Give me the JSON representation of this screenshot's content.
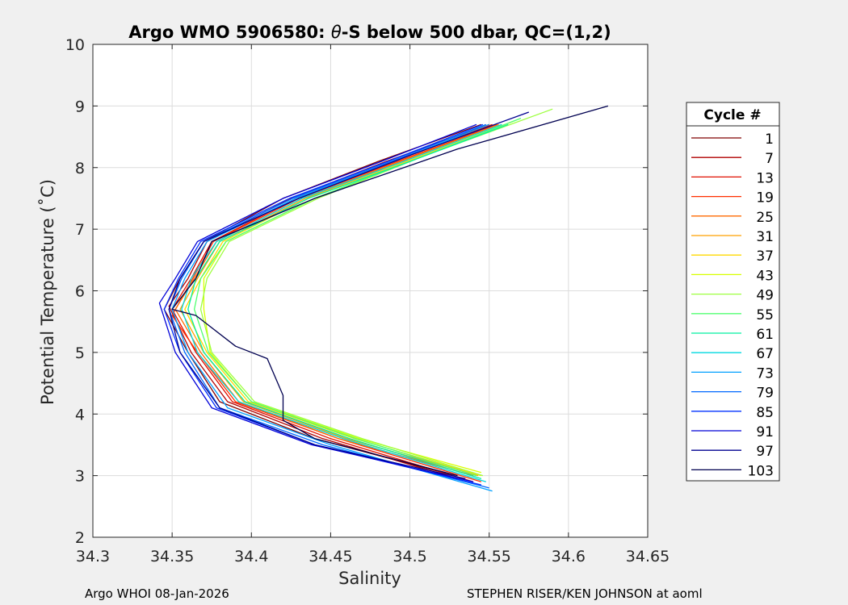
{
  "figure": {
    "footer_left": "Argo WHOI 08-Jan-2026",
    "footer_right": "STEPHEN RISER/KEN JOHNSON at aoml",
    "background": "#f0f0f0"
  },
  "chart_data": {
    "type": "line",
    "title_prefix": "Argo WMO 5906580: ",
    "title_theta": "θ",
    "title_suffix": "-S below 500 dbar,  QC=(1,2)",
    "xlabel": "Salinity",
    "ylabel": "Potential Temperature (˚C)",
    "xlim": [
      34.3,
      34.65
    ],
    "ylim": [
      2,
      10
    ],
    "xticks": [
      "34.3",
      "34.35",
      "34.4",
      "34.45",
      "34.5",
      "34.55",
      "34.6",
      "34.65"
    ],
    "yticks": [
      "2",
      "3",
      "4",
      "5",
      "6",
      "7",
      "8",
      "9",
      "10"
    ],
    "grid": true,
    "legend_title": "Cycle #",
    "legend_position": "outside-right",
    "legend_entries": [
      "1",
      "7",
      "13",
      "19",
      "25",
      "31",
      "37",
      "43",
      "49",
      "55",
      "61",
      "67",
      "73",
      "79",
      "85",
      "91",
      "97",
      "103"
    ],
    "legend_colors": [
      "#800000",
      "#b00000",
      "#e01000",
      "#ff3000",
      "#ff6a00",
      "#ffa000",
      "#ffd800",
      "#d8ff00",
      "#9eff40",
      "#50ff70",
      "#00f0a0",
      "#00d8e0",
      "#00a0ff",
      "#0068ff",
      "#0030ff",
      "#0000d8",
      "#000090",
      "#000050"
    ],
    "series": [
      {
        "name": "1",
        "color": "#800000",
        "salinity": [
          34.528,
          34.44,
          34.38,
          34.36,
          34.345,
          34.355,
          34.37,
          34.42,
          34.48,
          34.545
        ],
        "theta": [
          3.0,
          3.6,
          4.2,
          5.0,
          5.7,
          6.2,
          6.8,
          7.5,
          8.1,
          8.7
        ]
      },
      {
        "name": "7",
        "color": "#b00000",
        "salinity": [
          34.53,
          34.445,
          34.385,
          34.362,
          34.348,
          34.36,
          34.372,
          34.425,
          34.485,
          34.55
        ],
        "theta": [
          2.95,
          3.6,
          4.2,
          5.0,
          5.75,
          6.2,
          6.8,
          7.5,
          8.1,
          8.7
        ]
      },
      {
        "name": "13",
        "color": "#e01000",
        "salinity": [
          34.54,
          34.45,
          34.388,
          34.365,
          34.35,
          34.362,
          34.375,
          34.428,
          34.49,
          34.552
        ],
        "theta": [
          2.9,
          3.6,
          4.2,
          5.0,
          5.7,
          6.2,
          6.8,
          7.5,
          8.1,
          8.7
        ]
      },
      {
        "name": "19",
        "color": "#ff3000",
        "salinity": [
          34.545,
          34.455,
          34.39,
          34.366,
          34.35,
          34.363,
          34.376,
          34.43,
          34.492,
          34.555
        ],
        "theta": [
          2.9,
          3.6,
          4.2,
          5.0,
          5.6,
          6.2,
          6.8,
          7.5,
          8.1,
          8.7
        ]
      },
      {
        "name": "25",
        "color": "#ff6a00",
        "salinity": [
          34.54,
          34.455,
          34.392,
          34.368,
          34.352,
          34.364,
          34.378,
          34.432,
          34.494,
          34.556
        ],
        "theta": [
          3.0,
          3.6,
          4.2,
          5.0,
          5.7,
          6.2,
          6.8,
          7.5,
          8.1,
          8.7
        ]
      },
      {
        "name": "31",
        "color": "#ffa000",
        "salinity": [
          34.543,
          34.46,
          34.395,
          34.37,
          34.355,
          34.366,
          34.38,
          34.434,
          34.496,
          34.558
        ],
        "theta": [
          3.0,
          3.6,
          4.2,
          5.0,
          5.7,
          6.2,
          6.8,
          7.5,
          8.1,
          8.7
        ]
      },
      {
        "name": "37",
        "color": "#ffd800",
        "salinity": [
          34.545,
          34.465,
          34.398,
          34.372,
          34.358,
          34.368,
          34.382,
          34.436,
          34.498,
          34.56
        ],
        "theta": [
          3.0,
          3.6,
          4.2,
          5.0,
          5.7,
          6.2,
          6.8,
          7.5,
          8.1,
          8.7
        ]
      },
      {
        "name": "43",
        "color": "#d8ff00",
        "salinity": [
          34.545,
          34.468,
          34.4,
          34.374,
          34.37,
          34.37,
          34.384,
          34.44,
          34.5,
          34.565
        ],
        "theta": [
          3.05,
          3.6,
          4.2,
          5.0,
          5.7,
          6.2,
          6.8,
          7.5,
          8.1,
          8.75
        ]
      },
      {
        "name": "49",
        "color": "#9eff40",
        "salinity": [
          34.546,
          34.47,
          34.402,
          34.375,
          34.368,
          34.372,
          34.386,
          34.442,
          34.51,
          34.59
        ],
        "theta": [
          3.0,
          3.6,
          4.2,
          5.0,
          5.7,
          6.2,
          6.8,
          7.5,
          8.2,
          8.95
        ]
      },
      {
        "name": "55",
        "color": "#50ff70",
        "salinity": [
          34.542,
          34.466,
          34.4,
          34.373,
          34.364,
          34.368,
          34.384,
          34.44,
          34.505,
          34.57
        ],
        "theta": [
          3.0,
          3.6,
          4.2,
          5.0,
          5.7,
          6.2,
          6.8,
          7.5,
          8.15,
          8.8
        ]
      },
      {
        "name": "61",
        "color": "#00f0a0",
        "salinity": [
          34.545,
          34.462,
          34.396,
          34.37,
          34.36,
          34.365,
          34.38,
          34.436,
          34.5,
          34.562
        ],
        "theta": [
          2.95,
          3.6,
          4.2,
          5.0,
          5.7,
          6.2,
          6.8,
          7.5,
          8.1,
          8.7
        ]
      },
      {
        "name": "67",
        "color": "#00d8e0",
        "salinity": [
          34.548,
          34.458,
          34.392,
          34.366,
          34.356,
          34.362,
          34.378,
          34.432,
          34.496,
          34.558
        ],
        "theta": [
          2.9,
          3.6,
          4.2,
          5.0,
          5.7,
          6.2,
          6.8,
          7.5,
          8.1,
          8.7
        ]
      },
      {
        "name": "73",
        "color": "#00a0ff",
        "salinity": [
          34.552,
          34.45,
          34.385,
          34.36,
          34.35,
          34.358,
          34.372,
          34.428,
          34.49,
          34.55
        ],
        "theta": [
          2.75,
          3.5,
          4.1,
          5.0,
          5.7,
          6.2,
          6.8,
          7.5,
          8.1,
          8.7
        ]
      },
      {
        "name": "79",
        "color": "#0068ff",
        "salinity": [
          34.55,
          34.445,
          34.38,
          34.358,
          34.348,
          34.356,
          34.37,
          34.426,
          34.488,
          34.548
        ],
        "theta": [
          2.8,
          3.5,
          4.1,
          5.0,
          5.7,
          6.2,
          6.8,
          7.5,
          8.1,
          8.7
        ]
      },
      {
        "name": "85",
        "color": "#0030ff",
        "salinity": [
          34.545,
          34.44,
          34.378,
          34.355,
          34.345,
          34.354,
          34.368,
          34.424,
          34.486,
          34.546
        ],
        "theta": [
          2.85,
          3.5,
          4.1,
          5.0,
          5.7,
          6.2,
          6.8,
          7.5,
          8.1,
          8.7
        ]
      },
      {
        "name": "91",
        "color": "#0000d8",
        "salinity": [
          34.54,
          34.438,
          34.375,
          34.352,
          34.342,
          34.352,
          34.366,
          34.42,
          34.482,
          34.542
        ],
        "theta": [
          2.9,
          3.5,
          4.1,
          5.0,
          5.8,
          6.2,
          6.8,
          7.5,
          8.1,
          8.7
        ]
      },
      {
        "name": "97",
        "color": "#000090",
        "salinity": [
          34.535,
          34.44,
          34.38,
          34.355,
          34.348,
          34.355,
          34.37,
          34.43,
          34.5,
          34.575
        ],
        "theta": [
          2.95,
          3.5,
          4.1,
          5.0,
          5.7,
          6.2,
          6.8,
          7.5,
          8.2,
          8.9
        ]
      },
      {
        "name": "103",
        "color": "#000050",
        "salinity": [
          34.53,
          34.44,
          34.42,
          34.42,
          34.41,
          34.39,
          34.365,
          34.35,
          34.365,
          34.375,
          34.44,
          34.53,
          34.625
        ],
        "theta": [
          3.0,
          3.6,
          3.9,
          4.3,
          4.9,
          5.1,
          5.6,
          5.7,
          6.2,
          6.8,
          7.5,
          8.3,
          9.0
        ]
      }
    ]
  }
}
